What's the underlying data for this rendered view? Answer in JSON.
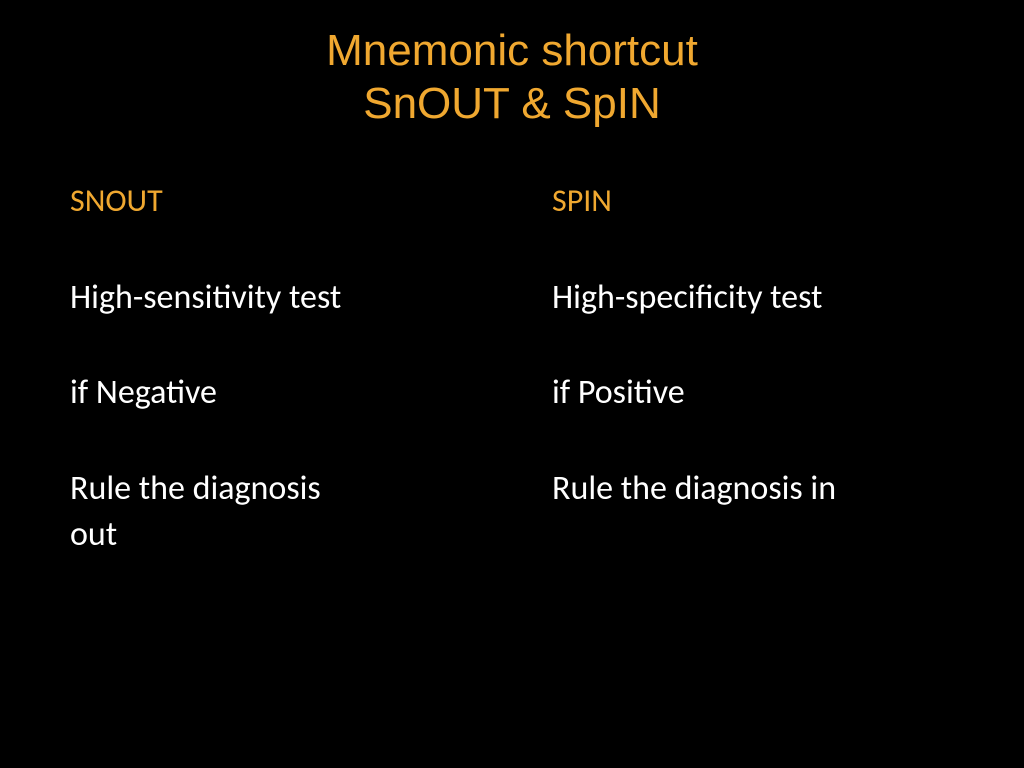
{
  "colors": {
    "background": "#000000",
    "accent": "#f0a830",
    "body_text": "#ffffff"
  },
  "typography": {
    "title_fontsize": 44,
    "heading_fontsize": 32,
    "body_fontsize": 34,
    "title_font": "Tahoma",
    "body_font": "Calibri"
  },
  "title": {
    "line1": "Mnemonic shortcut",
    "line2": "SnOUT & SpIN"
  },
  "left": {
    "heading": "SNOUT",
    "line1": "High-sensitivity test",
    "line2": "if Negative",
    "line3a": "Rule the diagnosis",
    "line3b": "out"
  },
  "right": {
    "heading": "SPIN",
    "line1": "High-specificity test",
    "line2": "if Positive",
    "line3": "Rule the diagnosis in"
  }
}
